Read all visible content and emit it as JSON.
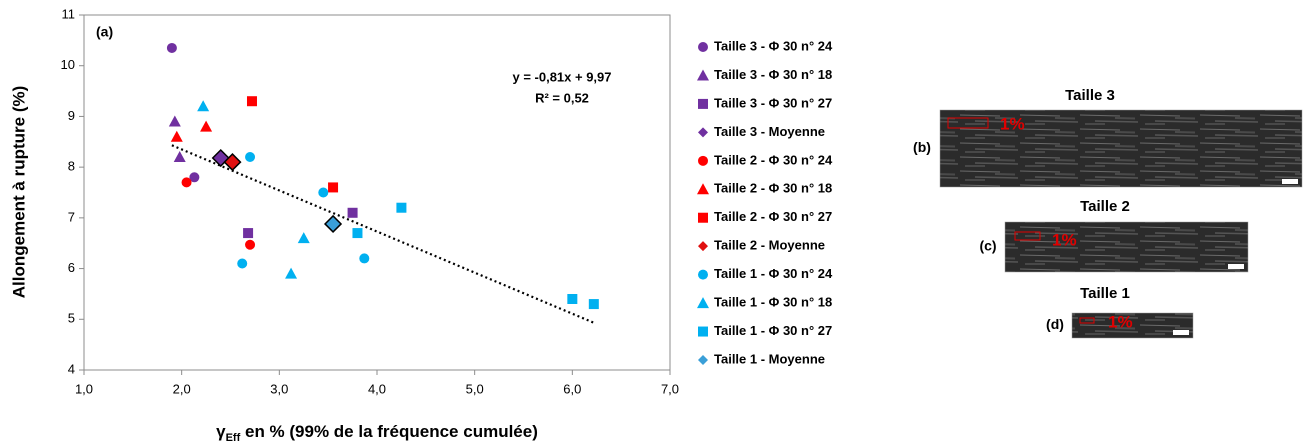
{
  "chart_data": {
    "type": "scatter",
    "panel_label": "(a)",
    "ylabel": "Allongement à rupture (%)",
    "xlabel": {
      "symbol": "γ",
      "subscript": "Eff",
      "text": " en % (99% de la fréquence cumulée)"
    },
    "xlim": [
      1,
      7
    ],
    "ylim": [
      4,
      11
    ],
    "xticks": [
      {
        "value": 1,
        "label": "1,0"
      },
      {
        "value": 2,
        "label": "2,0"
      },
      {
        "value": 3,
        "label": "3,0"
      },
      {
        "value": 4,
        "label": "4,0"
      },
      {
        "value": 5,
        "label": "5,0"
      },
      {
        "value": 6,
        "label": "6,0"
      },
      {
        "value": 7,
        "label": "7,0"
      }
    ],
    "yticks": [
      4,
      5,
      6,
      7,
      8,
      9,
      10,
      11
    ],
    "trendline": {
      "slope": -0.81,
      "intercept": 9.97,
      "equation": "y = -0,81x + 9,97",
      "r2": "R² = 0,52"
    },
    "series": [
      {
        "name": "Taille 3 - Φ 30 n° 24",
        "color": "#7030a0",
        "marker": "circle",
        "x": [
          1.9,
          2.13
        ],
        "values": [
          10.35,
          7.8
        ]
      },
      {
        "name": "Taille 3 - Φ 30 n° 18",
        "color": "#7030a0",
        "marker": "triangle",
        "x": [
          1.93,
          1.98
        ],
        "values": [
          8.9,
          8.2
        ]
      },
      {
        "name": "Taille 3 - Φ 30 n° 27",
        "color": "#7030a0",
        "marker": "square",
        "x": [
          2.68,
          3.75
        ],
        "values": [
          6.7,
          7.1
        ]
      },
      {
        "name": "Taille 3 - Moyenne",
        "color": "#7030a0",
        "marker": "diamond",
        "x": [
          2.4
        ],
        "values": [
          8.18
        ]
      },
      {
        "name": "Taille 2 - Φ 30 n° 24",
        "color": "#ff0000",
        "marker": "circle",
        "x": [
          2.05,
          2.7
        ],
        "values": [
          7.7,
          6.47
        ]
      },
      {
        "name": "Taille 2 - Φ 30 n° 18",
        "color": "#ff0000",
        "marker": "triangle",
        "x": [
          1.95,
          2.25
        ],
        "values": [
          8.6,
          8.8
        ]
      },
      {
        "name": "Taille 2 - Φ 30 n° 27",
        "color": "#ff0000",
        "marker": "square",
        "x": [
          2.72,
          3.55
        ],
        "values": [
          9.3,
          7.6
        ]
      },
      {
        "name": "Taille 2 - Moyenne",
        "color": "#e01010",
        "marker": "diamond",
        "x": [
          2.52
        ],
        "values": [
          8.1
        ]
      },
      {
        "name": "Taille 1 - Φ 30 n° 24",
        "color": "#00b0f0",
        "marker": "circle",
        "x": [
          2.7,
          2.62,
          3.45,
          3.87
        ],
        "values": [
          8.2,
          6.1,
          7.5,
          6.2
        ]
      },
      {
        "name": "Taille 1 - Φ 30 n° 18",
        "color": "#00b0f0",
        "marker": "triangle",
        "x": [
          2.22,
          3.12,
          3.25
        ],
        "values": [
          9.2,
          5.9,
          6.6
        ]
      },
      {
        "name": "Taille 1 - Φ 30 n° 27",
        "color": "#00b0f0",
        "marker": "square",
        "x": [
          3.8,
          4.25,
          6.0,
          6.22
        ],
        "values": [
          6.7,
          7.2,
          5.4,
          5.3
        ]
      },
      {
        "name": "Taille 1 - Moyenne",
        "color": "#3a9fd8",
        "marker": "diamond",
        "x": [
          3.55
        ],
        "values": [
          6.88
        ]
      }
    ]
  },
  "panels": [
    {
      "title": "Taille 3",
      "label": "(b)",
      "annotation": "1%"
    },
    {
      "title": "Taille 2",
      "label": "(c)",
      "annotation": "1%"
    },
    {
      "title": "Taille 1",
      "label": "(d)",
      "annotation": "1%"
    }
  ]
}
